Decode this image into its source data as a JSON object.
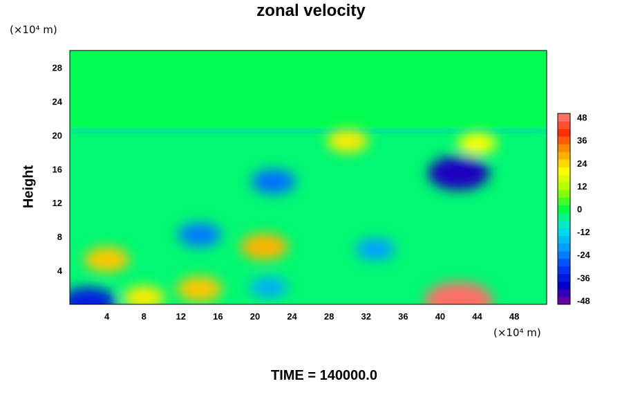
{
  "chart_data": {
    "type": "heatmap",
    "title": "zonal velocity",
    "ylabel": "Height",
    "xlabel": "",
    "x_unit": "(×10⁴ m)",
    "y_unit": "(×10⁴ m)",
    "xlim": [
      0,
      51.5
    ],
    "ylim": [
      0,
      30
    ],
    "x_ticks": [
      4,
      8,
      12,
      16,
      20,
      24,
      28,
      32,
      36,
      40,
      44,
      48
    ],
    "y_ticks": [
      4,
      8,
      12,
      16,
      20,
      24,
      28
    ],
    "colorbar": {
      "range": [
        -50,
        50
      ],
      "ticks": [
        48,
        36,
        24,
        12,
        0,
        -12,
        -24,
        -36,
        -48
      ],
      "colors": [
        "#8000a0",
        "#0000c8",
        "#0040ff",
        "#00a0ff",
        "#00e6e6",
        "#00ff40",
        "#a0ff00",
        "#ffff00",
        "#ffa000",
        "#ff3000",
        "#ff8080"
      ]
    },
    "grid": false,
    "features": [
      {
        "x": 30,
        "y": 19.3,
        "value": 22
      },
      {
        "x": 44,
        "y": 19.0,
        "value": 20
      },
      {
        "x": 42,
        "y": 15.5,
        "value": -42
      },
      {
        "x": 22,
        "y": 14.5,
        "value": -25
      },
      {
        "x": 14,
        "y": 8.2,
        "value": -24
      },
      {
        "x": 21,
        "y": 6.8,
        "value": 28
      },
      {
        "x": 33,
        "y": 6.5,
        "value": -20
      },
      {
        "x": 42,
        "y": 0.4,
        "value": 48
      },
      {
        "x": 14,
        "y": 1.8,
        "value": 26
      },
      {
        "x": 2,
        "y": 0.2,
        "value": -36
      },
      {
        "x": 21.5,
        "y": 2.0,
        "value": -18
      },
      {
        "x": 4,
        "y": 5.3,
        "value": 26
      },
      {
        "x": 8,
        "y": 0.8,
        "value": 22
      }
    ],
    "footer": "TIME = 140000.0"
  }
}
